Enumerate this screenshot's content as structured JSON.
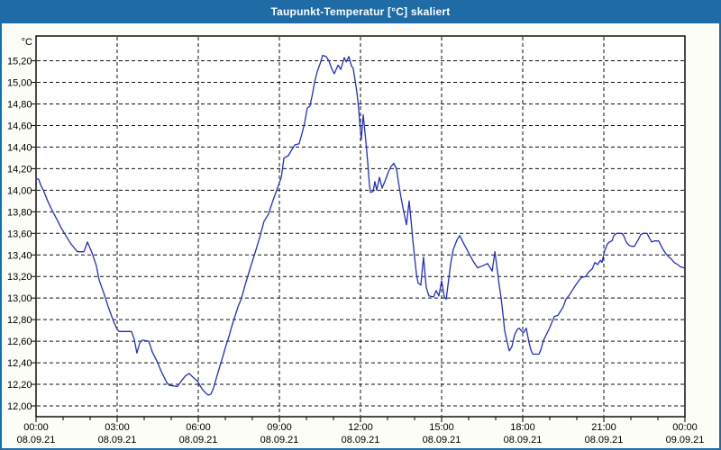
{
  "window": {
    "title": "Taupunkt-Temperatur [°C] skaliert"
  },
  "colors": {
    "titlebar": "#1f6ba5",
    "window_border": "#1f6ba5",
    "background": "#fbfdf6",
    "plot_background": "#ffffff",
    "grid": "#111111",
    "axis": "#000000",
    "label_text": "#000000",
    "title_text": "#ffffff",
    "line": "#2230bd"
  },
  "chart_data": {
    "type": "line",
    "title": "Taupunkt-Temperatur [°C] skaliert",
    "unit_label": "°C",
    "xlabel": "",
    "ylabel": "°C",
    "ylim": [
      11.9,
      15.43
    ],
    "xlim_hours": [
      0,
      24
    ],
    "grid": "dashed",
    "legend_position": "none",
    "y_ticks": [
      {
        "value": 12.0,
        "label": "12,00"
      },
      {
        "value": 12.2,
        "label": "12,20"
      },
      {
        "value": 12.4,
        "label": "12,40"
      },
      {
        "value": 12.6,
        "label": "12,60"
      },
      {
        "value": 12.8,
        "label": "12,80"
      },
      {
        "value": 13.0,
        "label": "13,00"
      },
      {
        "value": 13.2,
        "label": "13,20"
      },
      {
        "value": 13.4,
        "label": "13,40"
      },
      {
        "value": 13.6,
        "label": "13,60"
      },
      {
        "value": 13.8,
        "label": "13,80"
      },
      {
        "value": 14.0,
        "label": "14,00"
      },
      {
        "value": 14.2,
        "label": "14,20"
      },
      {
        "value": 14.4,
        "label": "14,40"
      },
      {
        "value": 14.6,
        "label": "14,60"
      },
      {
        "value": 14.8,
        "label": "14,80"
      },
      {
        "value": 15.0,
        "label": "15,00"
      },
      {
        "value": 15.2,
        "label": "15,20"
      }
    ],
    "x_ticks": [
      {
        "hour": 0,
        "time": "00:00",
        "date": "08.09.21"
      },
      {
        "hour": 3,
        "time": "03:00",
        "date": "08.09.21"
      },
      {
        "hour": 6,
        "time": "06:00",
        "date": "08.09.21"
      },
      {
        "hour": 9,
        "time": "09:00",
        "date": "08.09.21"
      },
      {
        "hour": 12,
        "time": "12:00",
        "date": "08.09.21"
      },
      {
        "hour": 15,
        "time": "15:00",
        "date": "08.09.21"
      },
      {
        "hour": 18,
        "time": "18:00",
        "date": "08.09.21"
      },
      {
        "hour": 21,
        "time": "21:00",
        "date": "08.09.21"
      },
      {
        "hour": 24,
        "time": "00:00",
        "date": "09.09.21"
      }
    ],
    "minor_x_tick_interval_hours": 1,
    "series": [
      {
        "name": "Taupunkt-Temperatur",
        "color": "#2230bd",
        "points": [
          [
            0.0,
            14.11
          ],
          [
            0.1,
            14.1
          ],
          [
            0.17,
            14.05
          ],
          [
            0.27,
            14.0
          ],
          [
            0.43,
            13.9
          ],
          [
            0.6,
            13.81
          ],
          [
            0.77,
            13.73
          ],
          [
            0.93,
            13.65
          ],
          [
            1.1,
            13.58
          ],
          [
            1.27,
            13.51
          ],
          [
            1.43,
            13.46
          ],
          [
            1.53,
            13.43
          ],
          [
            1.77,
            13.43
          ],
          [
            1.9,
            13.52
          ],
          [
            2.07,
            13.42
          ],
          [
            2.23,
            13.3
          ],
          [
            2.33,
            13.17
          ],
          [
            2.5,
            13.05
          ],
          [
            2.67,
            12.92
          ],
          [
            2.87,
            12.78
          ],
          [
            3.0,
            12.71
          ],
          [
            3.07,
            12.69
          ],
          [
            3.53,
            12.69
          ],
          [
            3.63,
            12.62
          ],
          [
            3.73,
            12.49
          ],
          [
            3.83,
            12.58
          ],
          [
            3.93,
            12.61
          ],
          [
            4.17,
            12.6
          ],
          [
            4.3,
            12.5
          ],
          [
            4.4,
            12.45
          ],
          [
            4.5,
            12.4
          ],
          [
            4.63,
            12.32
          ],
          [
            4.73,
            12.27
          ],
          [
            4.83,
            12.22
          ],
          [
            4.93,
            12.19
          ],
          [
            5.23,
            12.18
          ],
          [
            5.4,
            12.24
          ],
          [
            5.53,
            12.28
          ],
          [
            5.67,
            12.3
          ],
          [
            5.83,
            12.26
          ],
          [
            5.97,
            12.23
          ],
          [
            6.13,
            12.16
          ],
          [
            6.27,
            12.12
          ],
          [
            6.37,
            12.1
          ],
          [
            6.47,
            12.11
          ],
          [
            6.57,
            12.17
          ],
          [
            6.67,
            12.26
          ],
          [
            6.8,
            12.37
          ],
          [
            6.9,
            12.45
          ],
          [
            7.0,
            12.54
          ],
          [
            7.13,
            12.64
          ],
          [
            7.23,
            12.73
          ],
          [
            7.33,
            12.81
          ],
          [
            7.47,
            12.92
          ],
          [
            7.6,
            13.0
          ],
          [
            7.73,
            13.12
          ],
          [
            7.9,
            13.26
          ],
          [
            8.1,
            13.42
          ],
          [
            8.27,
            13.56
          ],
          [
            8.43,
            13.71
          ],
          [
            8.6,
            13.78
          ],
          [
            8.77,
            13.91
          ],
          [
            8.93,
            14.02
          ],
          [
            9.07,
            14.12
          ],
          [
            9.17,
            14.3
          ],
          [
            9.33,
            14.32
          ],
          [
            9.47,
            14.38
          ],
          [
            9.57,
            14.42
          ],
          [
            9.73,
            14.43
          ],
          [
            9.83,
            14.52
          ],
          [
            9.93,
            14.62
          ],
          [
            10.03,
            14.76
          ],
          [
            10.13,
            14.78
          ],
          [
            10.23,
            14.9
          ],
          [
            10.3,
            15.0
          ],
          [
            10.4,
            15.1
          ],
          [
            10.5,
            15.17
          ],
          [
            10.6,
            15.25
          ],
          [
            10.73,
            15.24
          ],
          [
            10.83,
            15.2
          ],
          [
            10.93,
            15.13
          ],
          [
            11.03,
            15.08
          ],
          [
            11.17,
            15.16
          ],
          [
            11.27,
            15.12
          ],
          [
            11.4,
            15.23
          ],
          [
            11.47,
            15.19
          ],
          [
            11.57,
            15.24
          ],
          [
            11.67,
            15.15
          ],
          [
            11.73,
            15.13
          ],
          [
            11.8,
            15.02
          ],
          [
            11.87,
            14.9
          ],
          [
            11.93,
            14.76
          ],
          [
            12.0,
            14.55
          ],
          [
            12.03,
            14.47
          ],
          [
            12.1,
            14.7
          ],
          [
            12.2,
            14.45
          ],
          [
            12.27,
            14.25
          ],
          [
            12.33,
            14.05
          ],
          [
            12.37,
            13.98
          ],
          [
            12.47,
            13.99
          ],
          [
            12.53,
            14.08
          ],
          [
            12.6,
            14.0
          ],
          [
            12.7,
            14.12
          ],
          [
            12.8,
            14.02
          ],
          [
            12.93,
            14.1
          ],
          [
            13.03,
            14.17
          ],
          [
            13.13,
            14.22
          ],
          [
            13.23,
            14.25
          ],
          [
            13.33,
            14.2
          ],
          [
            13.4,
            14.08
          ],
          [
            13.5,
            13.93
          ],
          [
            13.6,
            13.8
          ],
          [
            13.7,
            13.68
          ],
          [
            13.8,
            13.9
          ],
          [
            13.87,
            13.72
          ],
          [
            13.93,
            13.55
          ],
          [
            14.0,
            13.38
          ],
          [
            14.07,
            13.22
          ],
          [
            14.13,
            13.14
          ],
          [
            14.23,
            13.12
          ],
          [
            14.33,
            13.38
          ],
          [
            14.43,
            13.1
          ],
          [
            14.53,
            13.02
          ],
          [
            14.7,
            13.01
          ],
          [
            14.8,
            13.07
          ],
          [
            14.9,
            13.02
          ],
          [
            15.0,
            13.16
          ],
          [
            15.1,
            13.01
          ],
          [
            15.17,
            12.99
          ],
          [
            15.23,
            13.11
          ],
          [
            15.33,
            13.31
          ],
          [
            15.43,
            13.45
          ],
          [
            15.57,
            13.54
          ],
          [
            15.67,
            13.58
          ],
          [
            15.83,
            13.5
          ],
          [
            16.0,
            13.42
          ],
          [
            16.17,
            13.34
          ],
          [
            16.33,
            13.28
          ],
          [
            16.53,
            13.3
          ],
          [
            16.7,
            13.32
          ],
          [
            16.87,
            13.25
          ],
          [
            16.97,
            13.43
          ],
          [
            17.07,
            13.24
          ],
          [
            17.13,
            13.12
          ],
          [
            17.2,
            13.0
          ],
          [
            17.27,
            12.85
          ],
          [
            17.33,
            12.7
          ],
          [
            17.4,
            12.62
          ],
          [
            17.5,
            12.51
          ],
          [
            17.6,
            12.55
          ],
          [
            17.7,
            12.66
          ],
          [
            17.8,
            12.71
          ],
          [
            17.87,
            12.72
          ],
          [
            17.97,
            12.69
          ],
          [
            18.03,
            12.68
          ],
          [
            18.13,
            12.72
          ],
          [
            18.23,
            12.59
          ],
          [
            18.3,
            12.52
          ],
          [
            18.37,
            12.48
          ],
          [
            18.6,
            12.48
          ],
          [
            18.67,
            12.52
          ],
          [
            18.77,
            12.61
          ],
          [
            18.87,
            12.66
          ],
          [
            18.97,
            12.71
          ],
          [
            19.07,
            12.77
          ],
          [
            19.17,
            12.83
          ],
          [
            19.3,
            12.84
          ],
          [
            19.4,
            12.88
          ],
          [
            19.5,
            12.92
          ],
          [
            19.6,
            12.99
          ],
          [
            19.73,
            13.03
          ],
          [
            19.83,
            13.07
          ],
          [
            19.93,
            13.11
          ],
          [
            20.07,
            13.16
          ],
          [
            20.17,
            13.19
          ],
          [
            20.33,
            13.2
          ],
          [
            20.43,
            13.24
          ],
          [
            20.57,
            13.27
          ],
          [
            20.67,
            13.33
          ],
          [
            20.77,
            13.31
          ],
          [
            20.87,
            13.35
          ],
          [
            20.93,
            13.33
          ],
          [
            21.03,
            13.44
          ],
          [
            21.13,
            13.5
          ],
          [
            21.2,
            13.52
          ],
          [
            21.3,
            13.53
          ],
          [
            21.37,
            13.58
          ],
          [
            21.47,
            13.6
          ],
          [
            21.67,
            13.6
          ],
          [
            21.73,
            13.58
          ],
          [
            21.83,
            13.52
          ],
          [
            21.93,
            13.49
          ],
          [
            22.03,
            13.48
          ],
          [
            22.13,
            13.48
          ],
          [
            22.27,
            13.54
          ],
          [
            22.37,
            13.59
          ],
          [
            22.47,
            13.6
          ],
          [
            22.6,
            13.6
          ],
          [
            22.7,
            13.55
          ],
          [
            22.77,
            13.52
          ],
          [
            22.87,
            13.53
          ],
          [
            23.03,
            13.53
          ],
          [
            23.17,
            13.46
          ],
          [
            23.27,
            13.42
          ],
          [
            23.37,
            13.39
          ],
          [
            23.5,
            13.36
          ],
          [
            23.6,
            13.33
          ],
          [
            23.73,
            13.31
          ],
          [
            23.83,
            13.29
          ],
          [
            23.97,
            13.28
          ]
        ]
      }
    ]
  }
}
